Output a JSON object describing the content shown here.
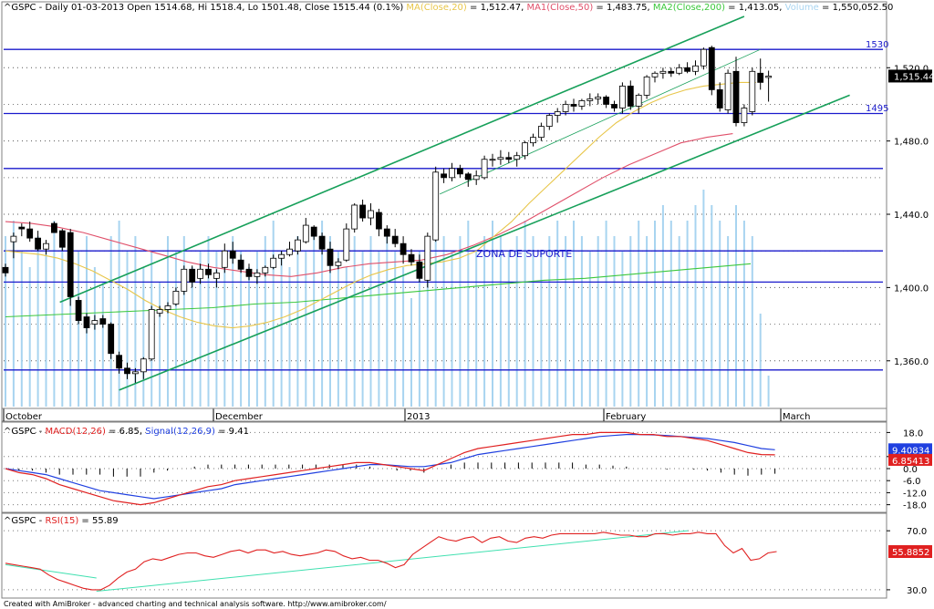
{
  "main_pane": {
    "title": {
      "sym": "^GSPC",
      "info": " - Daily 01-03-2013 Open 1514.68, Hi 1518.4, Lo 1501.48, Close 1515.44 (0.1%) ",
      "ma20_label": "MA(Close,20)",
      "ma20_value": " = 1,512.47, ",
      "ma50_label": "MA1(Close,50)",
      "ma50_value": " = 1,483.75, ",
      "ma200_label": "MA2(Close,200)",
      "ma200_value": " = 1,413.05, ",
      "volume_label": "Volume",
      "volume_value": " = 1,550,052.50"
    },
    "y_ticks": [
      "1,520.0",
      "1,480.0",
      "1,440.0",
      "1,400.0",
      "1,360.0"
    ],
    "x_labels": [
      "October",
      "December",
      "2013",
      "February",
      "March"
    ],
    "level_labels": [
      "1530",
      "1495"
    ],
    "annotation": "ZONA DE SUPORTE",
    "last_price_badge": "1,515.44"
  },
  "macd_pane": {
    "sym": "^GSPC",
    "macd_label": "MACD(12,26)",
    "macd_value": " = 6.85, ",
    "signal_label": "Signal(12,26,9)",
    "signal_value": " = 9.41",
    "y_ticks": [
      "18.0",
      "6.0",
      "0.0",
      "-6.0",
      "-12.0",
      "-18.0"
    ],
    "signal_badge": "9.40834",
    "macd_badge": "6.85413"
  },
  "rsi_pane": {
    "sym": "^GSPC",
    "rsi_label": "RSI(15)",
    "rsi_value": " = 55.89",
    "y_ticks": [
      "70.0",
      "30.0"
    ],
    "rsi_badge": "55.8852"
  },
  "footer": "Created with AmiBroker - advanced charting and technical analysis software. http://www.amibroker.com/",
  "colors": {
    "up_candle": "#ffffff",
    "down_candle": "#000000",
    "ma20": "#e8c64a",
    "ma50": "#e0506a",
    "ma200": "#3cc83c",
    "volume": "#a8d4f0",
    "channel": "#17a05a",
    "levels": "#1a1acc",
    "macd": "#e02020",
    "signal": "#2040e0",
    "rsi": "#e02020",
    "rsi_trend": "#40e0b0"
  },
  "chart_data": [
    {
      "type": "candlestick",
      "y_scale": "price",
      "ylim": [
        1335,
        1550
      ],
      "y_ticks": [
        1520,
        1480,
        1440,
        1400,
        1360
      ],
      "x_labels": [
        "October",
        "December",
        "2013",
        "February",
        "March"
      ],
      "horizontal_levels": [
        1530,
        1495,
        1465,
        1420,
        1403,
        1355
      ],
      "level_labels": {
        "1530": "1530",
        "1495": "1495"
      },
      "annotation": {
        "text": "ZONA DE SUPORTE",
        "price": 1416
      },
      "ohlc": [
        [
          1411,
          1413,
          1406,
          1408
        ],
        [
          1425,
          1430,
          1416,
          1428
        ],
        [
          1433,
          1435,
          1428,
          1432
        ],
        [
          1432,
          1436,
          1425,
          1427
        ],
        [
          1427,
          1431,
          1420,
          1421
        ],
        [
          1421,
          1426,
          1418,
          1424
        ],
        [
          1435,
          1436,
          1430,
          1430
        ],
        [
          1431,
          1432,
          1420,
          1422
        ],
        [
          1430,
          1432,
          1390,
          1395
        ],
        [
          1393,
          1395,
          1380,
          1382
        ],
        [
          1384,
          1386,
          1375,
          1378
        ],
        [
          1380,
          1385,
          1377,
          1382
        ],
        [
          1383,
          1385,
          1378,
          1380
        ],
        [
          1380,
          1381,
          1361,
          1364
        ],
        [
          1363,
          1365,
          1353,
          1356
        ],
        [
          1356,
          1359,
          1350,
          1353
        ],
        [
          1353,
          1356,
          1348,
          1354
        ],
        [
          1354,
          1362,
          1350,
          1361
        ],
        [
          1361,
          1390,
          1360,
          1388
        ],
        [
          1386,
          1390,
          1384,
          1388
        ],
        [
          1388,
          1392,
          1386,
          1390
        ],
        [
          1391,
          1400,
          1390,
          1398
        ],
        [
          1398,
          1412,
          1396,
          1410
        ],
        [
          1410,
          1412,
          1400,
          1403
        ],
        [
          1405,
          1413,
          1402,
          1410
        ],
        [
          1410,
          1413,
          1405,
          1407
        ],
        [
          1405,
          1410,
          1400,
          1408
        ],
        [
          1411,
          1424,
          1408,
          1420
        ],
        [
          1420,
          1425,
          1413,
          1416
        ],
        [
          1415,
          1418,
          1408,
          1410
        ],
        [
          1410,
          1413,
          1404,
          1406
        ],
        [
          1406,
          1410,
          1402,
          1408
        ],
        [
          1408,
          1412,
          1406,
          1411
        ],
        [
          1411,
          1418,
          1410,
          1416
        ],
        [
          1416,
          1420,
          1412,
          1418
        ],
        [
          1418,
          1425,
          1417,
          1421
        ],
        [
          1420,
          1428,
          1418,
          1426
        ],
        [
          1425,
          1438,
          1424,
          1434
        ],
        [
          1433,
          1434,
          1426,
          1428
        ],
        [
          1428,
          1430,
          1418,
          1421
        ],
        [
          1421,
          1425,
          1408,
          1412
        ],
        [
          1412,
          1416,
          1410,
          1414
        ],
        [
          1415,
          1435,
          1414,
          1432
        ],
        [
          1432,
          1446,
          1430,
          1445
        ],
        [
          1445,
          1448,
          1436,
          1438
        ],
        [
          1438,
          1446,
          1434,
          1442
        ],
        [
          1441,
          1443,
          1428,
          1432
        ],
        [
          1432,
          1434,
          1424,
          1428
        ],
        [
          1428,
          1432,
          1422,
          1424
        ],
        [
          1424,
          1428,
          1413,
          1418
        ],
        [
          1418,
          1421,
          1412,
          1414
        ],
        [
          1414,
          1418,
          1403,
          1405
        ],
        [
          1404,
          1430,
          1400,
          1428
        ],
        [
          1426,
          1466,
          1425,
          1463
        ],
        [
          1462,
          1465,
          1457,
          1460
        ],
        [
          1460,
          1468,
          1458,
          1465
        ],
        [
          1465,
          1467,
          1460,
          1462
        ],
        [
          1462,
          1463,
          1455,
          1459
        ],
        [
          1459,
          1464,
          1456,
          1461
        ],
        [
          1460,
          1472,
          1459,
          1470
        ],
        [
          1470,
          1473,
          1466,
          1470
        ],
        [
          1470,
          1475,
          1467,
          1471
        ],
        [
          1471,
          1474,
          1468,
          1470
        ],
        [
          1470,
          1474,
          1466,
          1472
        ],
        [
          1472,
          1480,
          1470,
          1479
        ],
        [
          1479,
          1484,
          1477,
          1482
        ],
        [
          1482,
          1490,
          1480,
          1488
        ],
        [
          1488,
          1495,
          1486,
          1494
        ],
        [
          1494,
          1498,
          1490,
          1496
        ],
        [
          1496,
          1502,
          1494,
          1500
        ],
        [
          1500,
          1503,
          1496,
          1499
        ],
        [
          1499,
          1503,
          1497,
          1502
        ],
        [
          1502,
          1506,
          1499,
          1503
        ],
        [
          1503,
          1506,
          1500,
          1504
        ],
        [
          1504,
          1505,
          1498,
          1500
        ],
        [
          1500,
          1502,
          1496,
          1498
        ],
        [
          1498,
          1512,
          1495,
          1510
        ],
        [
          1510,
          1513,
          1497,
          1499
        ],
        [
          1499,
          1506,
          1495,
          1505
        ],
        [
          1505,
          1516,
          1503,
          1515
        ],
        [
          1515,
          1518,
          1512,
          1517
        ],
        [
          1517,
          1520,
          1514,
          1518
        ],
        [
          1518,
          1520,
          1515,
          1517
        ],
        [
          1517,
          1522,
          1516,
          1520
        ],
        [
          1520,
          1523,
          1517,
          1518
        ],
        [
          1518,
          1524,
          1516,
          1521
        ],
        [
          1521,
          1531,
          1519,
          1530
        ],
        [
          1531,
          1532,
          1505,
          1508
        ],
        [
          1508,
          1512,
          1496,
          1498
        ],
        [
          1497,
          1519,
          1495,
          1517
        ],
        [
          1518,
          1526,
          1488,
          1490
        ],
        [
          1490,
          1500,
          1488,
          1498
        ],
        [
          1496,
          1520,
          1494,
          1518
        ],
        [
          1517,
          1525,
          1508,
          1512
        ],
        [
          1514.68,
          1518.4,
          1501.48,
          1515.44
        ]
      ],
      "ma20": [
        1420,
        1419,
        1418,
        1416,
        1413,
        1409,
        1404,
        1399,
        1393,
        1388,
        1384,
        1381,
        1379,
        1378,
        1379,
        1381,
        1384,
        1388,
        1393,
        1398,
        1403,
        1407,
        1410,
        1412,
        1413,
        1414,
        1416,
        1420,
        1428,
        1436,
        1446,
        1455,
        1464,
        1473,
        1482,
        1490,
        1496,
        1501,
        1505,
        1508,
        1510,
        1511,
        1512,
        1512
      ],
      "ma50": [
        1436,
        1435,
        1433,
        1430,
        1426,
        1422,
        1418,
        1414,
        1411,
        1409,
        1407,
        1406,
        1408,
        1411,
        1413,
        1414,
        1415,
        1418,
        1423,
        1429,
        1436,
        1444,
        1452,
        1460,
        1467,
        1473,
        1479,
        1482,
        1484
      ],
      "ma200": [
        1384,
        1385,
        1386,
        1387,
        1388,
        1389,
        1391,
        1392,
        1394,
        1396,
        1398,
        1400,
        1402,
        1404,
        1405,
        1407,
        1409,
        1411,
        1413
      ],
      "volume_relative": [
        0.55,
        0.6,
        0.5,
        0.45,
        0.55,
        0.5,
        0.6,
        0.55,
        0.5,
        0.5,
        0.55,
        0.45,
        0.4,
        0.55,
        0.6,
        0.5,
        0.55,
        0.45,
        0.5,
        0.4,
        0.55,
        0.5,
        0.55,
        0.45,
        0.5,
        0.55,
        0.5,
        0.45,
        0.55,
        0.5,
        0.45,
        0.5,
        0.55,
        0.6,
        0.5,
        0.45,
        0.55,
        0.5,
        0.55,
        0.6,
        0.55,
        0.5,
        0.45,
        0.55,
        0.5,
        0.55,
        0.5,
        0.55,
        0.5,
        0.45,
        0.35,
        0.5,
        0.55,
        0.6,
        0.55,
        0.5,
        0.55,
        0.6,
        0.5,
        0.55,
        0.6,
        0.55,
        0.5,
        0.55,
        0.6,
        0.55,
        0.5,
        0.55,
        0.6,
        0.55,
        0.6,
        0.55,
        0.5,
        0.55,
        0.6,
        0.55,
        0.5,
        0.55,
        0.6,
        0.55,
        0.6,
        0.65,
        0.6,
        0.55,
        0.6,
        0.65,
        0.7,
        0.65,
        0.6,
        0.55,
        0.65,
        0.6,
        0.55,
        0.3,
        0.1
      ]
    },
    {
      "type": "line",
      "name": "MACD(12,26) / Signal(12,26,9)",
      "ylim": [
        -20,
        20
      ],
      "y_ticks": [
        18,
        6,
        0,
        -6,
        -12,
        -18
      ],
      "macd": [
        0,
        -2,
        -3,
        -5,
        -8,
        -10,
        -12,
        -14,
        -16,
        -17,
        -18,
        -17,
        -15,
        -13,
        -11,
        -9,
        -8,
        -6,
        -5,
        -4,
        -3,
        -2,
        -1,
        0,
        1,
        2,
        3,
        3,
        2,
        1,
        0,
        -1,
        2,
        5,
        8,
        10,
        11,
        12,
        13,
        14,
        15,
        16,
        17,
        17,
        18,
        18,
        18,
        17,
        17,
        16,
        16,
        15,
        14,
        12,
        10,
        8,
        7,
        6.85
      ],
      "signal": [
        0,
        -1,
        -2,
        -3,
        -5,
        -7,
        -9,
        -11,
        -12,
        -13,
        -14,
        -15,
        -14,
        -13,
        -12,
        -11,
        -10,
        -8,
        -7,
        -6,
        -5,
        -4,
        -3,
        -2,
        -1,
        0,
        1,
        2,
        2,
        1.5,
        1,
        1,
        2,
        3,
        5,
        7,
        8,
        9,
        10,
        11,
        12,
        13,
        14,
        15,
        16,
        16.5,
        17,
        17,
        16.8,
        16.5,
        16,
        15.5,
        15,
        14,
        13,
        11.5,
        10,
        9.41
      ],
      "histogram": [
        0,
        -1,
        -1,
        -2,
        -3,
        -3,
        -3,
        -3,
        -4,
        -4,
        -4,
        -2,
        -1,
        0,
        1,
        2,
        2,
        2,
        2,
        2,
        2,
        2,
        2,
        2,
        2,
        2,
        2,
        1,
        0,
        -1,
        -1,
        -2,
        0,
        2,
        3,
        3,
        3,
        3,
        3,
        3,
        3,
        3,
        3,
        2,
        2,
        1.5,
        1,
        0,
        0,
        -0.5,
        0,
        -0.5,
        -1,
        -2,
        -3,
        -3.5,
        -3,
        -2.56
      ]
    },
    {
      "type": "line",
      "name": "RSI(15)",
      "ylim": [
        25,
        80
      ],
      "y_ticks": [
        70,
        30
      ],
      "rsi": [
        48,
        47,
        46,
        45,
        44,
        40,
        37,
        35,
        33,
        31,
        30,
        30,
        33,
        38,
        42,
        44,
        49,
        51,
        50,
        52,
        54,
        55,
        55,
        53,
        52,
        54,
        56,
        57,
        55,
        57,
        57,
        55,
        56,
        54,
        53,
        54,
        55,
        57,
        56,
        53,
        51,
        52,
        50,
        50,
        48,
        45,
        47,
        54,
        58,
        62,
        66,
        64,
        63,
        65,
        66,
        62,
        65,
        66,
        63,
        62,
        65,
        66,
        65,
        67,
        68,
        68,
        68,
        68,
        68,
        69,
        68,
        67,
        67,
        66,
        66,
        68,
        68,
        67,
        68,
        68,
        69,
        68,
        68,
        60,
        55,
        58,
        50,
        51,
        55,
        55.89
      ],
      "trendline": [
        [
          0,
          47
        ],
        [
          10,
          38
        ]
      ],
      "trendline2": [
        [
          10,
          29
        ],
        [
          75,
          70
        ]
      ]
    }
  ]
}
